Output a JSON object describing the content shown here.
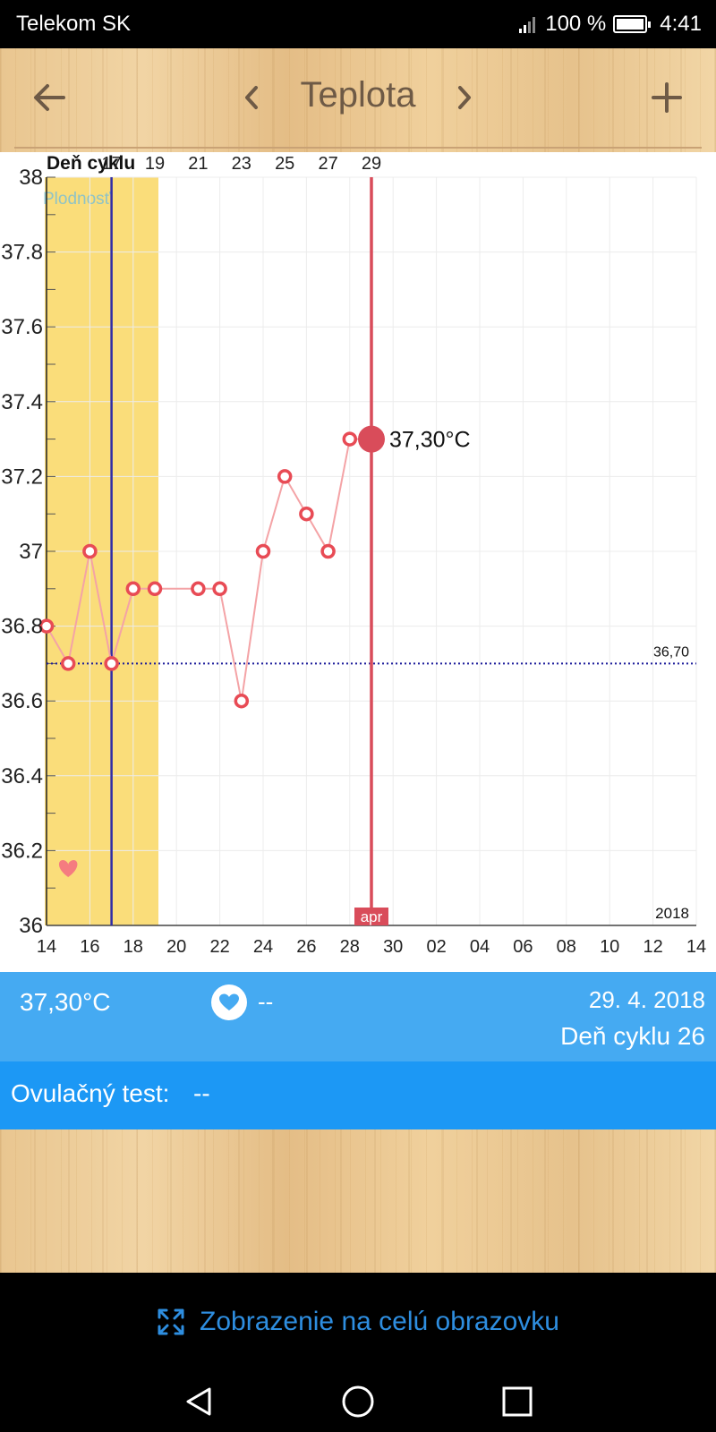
{
  "status_bar": {
    "carrier": "Telekom SK",
    "battery": "100 %",
    "time": "4:41"
  },
  "toolbar": {
    "title": "Teplota",
    "back_icon": "arrow-left-icon",
    "prev_icon": "chevron-left-icon",
    "next_icon": "chevron-right-icon",
    "add_icon": "plus-icon"
  },
  "chart_data": {
    "type": "line",
    "top_axis_label": "Deň cyklu",
    "cycle_day_ticks": [
      "17",
      "19",
      "21",
      "23",
      "25",
      "27",
      "29"
    ],
    "x_tick_labels": [
      "14",
      "16",
      "18",
      "20",
      "22",
      "24",
      "26",
      "28",
      "30",
      "02",
      "04",
      "06",
      "08",
      "10",
      "12",
      "14"
    ],
    "y_tick_labels": [
      "36",
      "36.2",
      "36.4",
      "36.6",
      "36.8",
      "37",
      "37.2",
      "37.4",
      "37.6",
      "37.8",
      "38"
    ],
    "ylim": [
      36,
      38
    ],
    "x": [
      14,
      15,
      16,
      17,
      18,
      19,
      21,
      22,
      23,
      24,
      25,
      26,
      27,
      28
    ],
    "values": [
      36.8,
      36.7,
      37.0,
      36.7,
      36.9,
      36.9,
      36.9,
      36.9,
      36.6,
      37.0,
      37.2,
      37.1,
      37.0,
      37.3
    ],
    "selected": {
      "x": 29,
      "value": 37.3,
      "label": "37,30°C"
    },
    "fertile_window": {
      "start": 14,
      "end": 19,
      "label": "Plodnosť"
    },
    "ovulation_day": 17,
    "baseline": {
      "value": 36.7,
      "label": "36,70"
    },
    "month_label": "apr",
    "year_label": "2018",
    "intercourse_day": 15,
    "colors": {
      "fertile": "#fadd7a",
      "line": "#f4a3a6",
      "marker": "#e84b55",
      "selected": "#d94c5a",
      "ovulation": "#2e2ca8",
      "baseline": "#1a1a9a",
      "grid": "#ececec"
    }
  },
  "info": {
    "temperature": "37,30°C",
    "heart_value": "--",
    "date": "29. 4. 2018",
    "cycle_day": "Deň cyklu 26"
  },
  "test": {
    "label": "Ovulačný test:",
    "value": "--"
  },
  "footer": {
    "fullscreen_label": "Zobrazenie na celú obrazovku"
  },
  "nav": {
    "back": "nav-back-icon",
    "home": "nav-home-icon",
    "recent": "nav-recent-icon"
  }
}
